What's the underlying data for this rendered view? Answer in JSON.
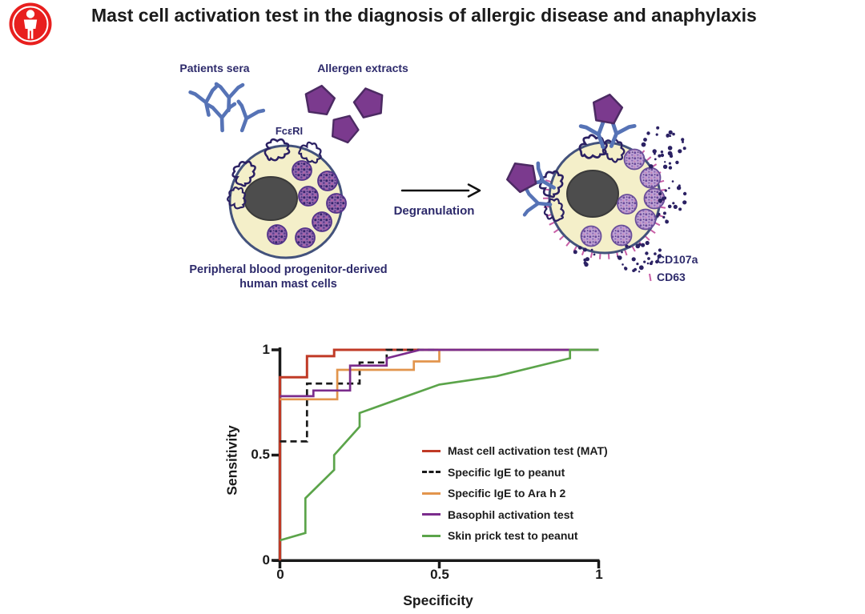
{
  "header": {
    "title": "Mast cell activation test in the diagnosis of allergic disease and anaphylaxis"
  },
  "diagram": {
    "patients_sera_label": "Patients sera",
    "allergen_extracts_label": "Allergen extracts",
    "receptor_label": "FcεRI",
    "arrow_label": "Degranulation",
    "cell_caption_line1": "Peripheral blood progenitor-derived",
    "cell_caption_line2": "human mast cells",
    "marker1_label": "CD107a",
    "marker2_label": "CD63"
  },
  "colors": {
    "logo_red": "#e81f1e",
    "text_navy": "#2d2a6b",
    "antibody": "#5673b6",
    "allergen": "#7b3a8e",
    "allergen_stroke": "#4c2a63",
    "cell_fill": "#f4efc9",
    "cell_border": "#43527c",
    "nucleus": "#4d4d4d",
    "receptor": "#2b2163",
    "released_granules": "#2b2163",
    "cd63_tick": "#c85fa6"
  },
  "chart_data": {
    "type": "line",
    "subtype": "ROC curves",
    "title": "",
    "xlabel": "Specificity",
    "ylabel": "Sensitivity",
    "xlim": [
      0,
      1
    ],
    "ylim": [
      0,
      1
    ],
    "grid": false,
    "legend_position": "inside right",
    "x_ticks": [
      0,
      0.5,
      1
    ],
    "y_ticks": [
      0,
      0.5,
      1
    ],
    "x_tick_labels": [
      "0",
      "0.5",
      "1"
    ],
    "y_tick_labels": [
      "0",
      "0.5",
      "1"
    ],
    "series": [
      {
        "name": "Mast cell activation test (MAT)",
        "color": "#c03a26",
        "style": "solid",
        "points": [
          [
            0,
            0
          ],
          [
            0,
            0.87
          ],
          [
            0.085,
            0.87
          ],
          [
            0.085,
            0.97
          ],
          [
            0.17,
            0.97
          ],
          [
            0.17,
            1
          ],
          [
            1,
            1
          ]
        ]
      },
      {
        "name": "Specific IgE to peanut",
        "color": "#1a1a1a",
        "style": "dashed",
        "points": [
          [
            0,
            0.565
          ],
          [
            0.085,
            0.565
          ],
          [
            0.085,
            0.84
          ],
          [
            0.25,
            0.84
          ],
          [
            0.25,
            0.94
          ],
          [
            0.335,
            0.94
          ],
          [
            0.335,
            1
          ],
          [
            1,
            1
          ]
        ]
      },
      {
        "name": "Specific IgE to Ara h 2",
        "color": "#e2954d",
        "style": "solid",
        "points": [
          [
            0,
            0.765
          ],
          [
            0.18,
            0.765
          ],
          [
            0.18,
            0.905
          ],
          [
            0.42,
            0.905
          ],
          [
            0.42,
            0.945
          ],
          [
            0.5,
            0.945
          ],
          [
            0.5,
            1
          ],
          [
            1,
            1
          ]
        ]
      },
      {
        "name": "Basophil activation test",
        "color": "#7b2c8c",
        "style": "solid",
        "points": [
          [
            0,
            0.78
          ],
          [
            0.105,
            0.78
          ],
          [
            0.105,
            0.807
          ],
          [
            0.22,
            0.807
          ],
          [
            0.22,
            0.925
          ],
          [
            0.335,
            0.925
          ],
          [
            0.335,
            0.96
          ],
          [
            0.44,
            1
          ],
          [
            1,
            1
          ]
        ]
      },
      {
        "name": "Skin prick test to peanut",
        "color": "#5ba44a",
        "style": "solid",
        "points": [
          [
            0,
            0.095
          ],
          [
            0.08,
            0.13
          ],
          [
            0.08,
            0.295
          ],
          [
            0.17,
            0.43
          ],
          [
            0.17,
            0.5
          ],
          [
            0.25,
            0.635
          ],
          [
            0.25,
            0.7
          ],
          [
            0.5,
            0.835
          ],
          [
            0.68,
            0.875
          ],
          [
            0.91,
            0.96
          ],
          [
            0.91,
            1
          ],
          [
            1,
            1
          ]
        ]
      }
    ]
  }
}
